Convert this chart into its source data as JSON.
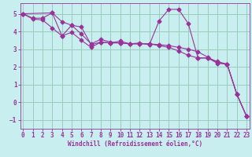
{
  "background_color": "#c8eef0",
  "grid_color": "#99ccbb",
  "line_color": "#993399",
  "xlabel": "Windchill (Refroidissement éolien,°C)",
  "xlim": [
    -0.3,
    23.3
  ],
  "ylim": [
    -1.5,
    5.6
  ],
  "xticks": [
    0,
    1,
    2,
    3,
    4,
    5,
    6,
    7,
    8,
    9,
    10,
    11,
    12,
    13,
    14,
    15,
    16,
    17,
    18,
    19,
    20,
    21,
    22,
    23
  ],
  "yticks": [
    -1,
    0,
    1,
    2,
    3,
    4,
    5
  ],
  "line1_x": [
    0,
    1,
    2,
    3,
    4,
    5,
    6,
    7,
    8,
    9,
    10,
    11,
    12,
    13,
    14,
    15,
    16,
    17,
    18,
    19,
    20,
    21,
    22,
    23
  ],
  "line1_y": [
    5.0,
    4.75,
    4.75,
    5.05,
    4.55,
    4.35,
    3.85,
    3.3,
    3.55,
    3.4,
    3.35,
    3.3,
    3.3,
    3.3,
    3.25,
    3.2,
    3.1,
    3.0,
    2.85,
    2.55,
    2.25,
    2.15,
    0.45,
    -0.8
  ],
  "line2_x": [
    0,
    1,
    2,
    3,
    4,
    5,
    6,
    7,
    8,
    9,
    10,
    11,
    12,
    13,
    14,
    15,
    16,
    17,
    18,
    19,
    20,
    21,
    22,
    23
  ],
  "line2_y": [
    5.0,
    4.7,
    4.65,
    4.2,
    3.75,
    3.95,
    3.5,
    3.1,
    3.4,
    3.35,
    3.35,
    3.3,
    3.3,
    3.3,
    3.2,
    3.1,
    2.9,
    2.65,
    2.5,
    2.5,
    2.2,
    2.15,
    0.45,
    -0.8
  ],
  "line3_x": [
    0,
    3,
    4,
    5,
    6,
    7,
    8,
    9,
    10,
    11,
    12,
    13,
    14,
    15,
    16,
    17,
    18,
    19,
    20,
    21,
    22,
    23
  ],
  "line3_y": [
    5.0,
    5.05,
    3.75,
    4.35,
    4.25,
    3.25,
    3.4,
    3.35,
    3.45,
    3.3,
    3.35,
    3.25,
    4.6,
    5.25,
    5.25,
    4.45,
    2.5,
    2.5,
    2.3,
    2.15,
    0.45,
    -0.8
  ]
}
